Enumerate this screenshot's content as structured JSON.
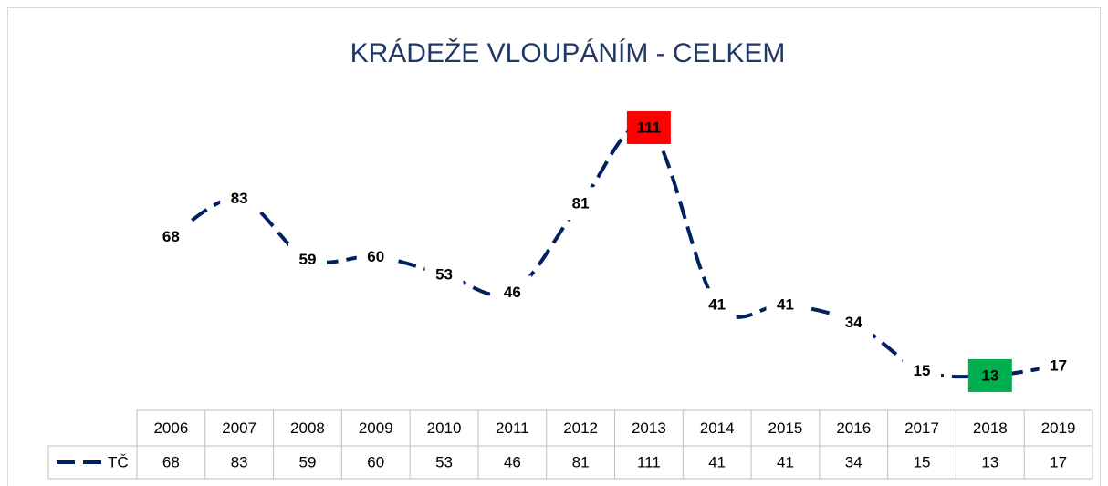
{
  "chart_data": {
    "type": "line",
    "title": "KRÁDEŽE VLOUPÁNÍM - CELKEM",
    "categories": [
      "2006",
      "2007",
      "2008",
      "2009",
      "2010",
      "2011",
      "2012",
      "2013",
      "2014",
      "2015",
      "2016",
      "2017",
      "2018",
      "2019"
    ],
    "series": [
      {
        "name": "TČ",
        "color": "#002060",
        "values": [
          68,
          83,
          59,
          60,
          53,
          46,
          81,
          111,
          41,
          41,
          34,
          15,
          13,
          17
        ]
      }
    ],
    "ylim": [
      0,
      120
    ],
    "max_color": "#ff0000",
    "min_color": "#00b050",
    "data_table": true
  }
}
